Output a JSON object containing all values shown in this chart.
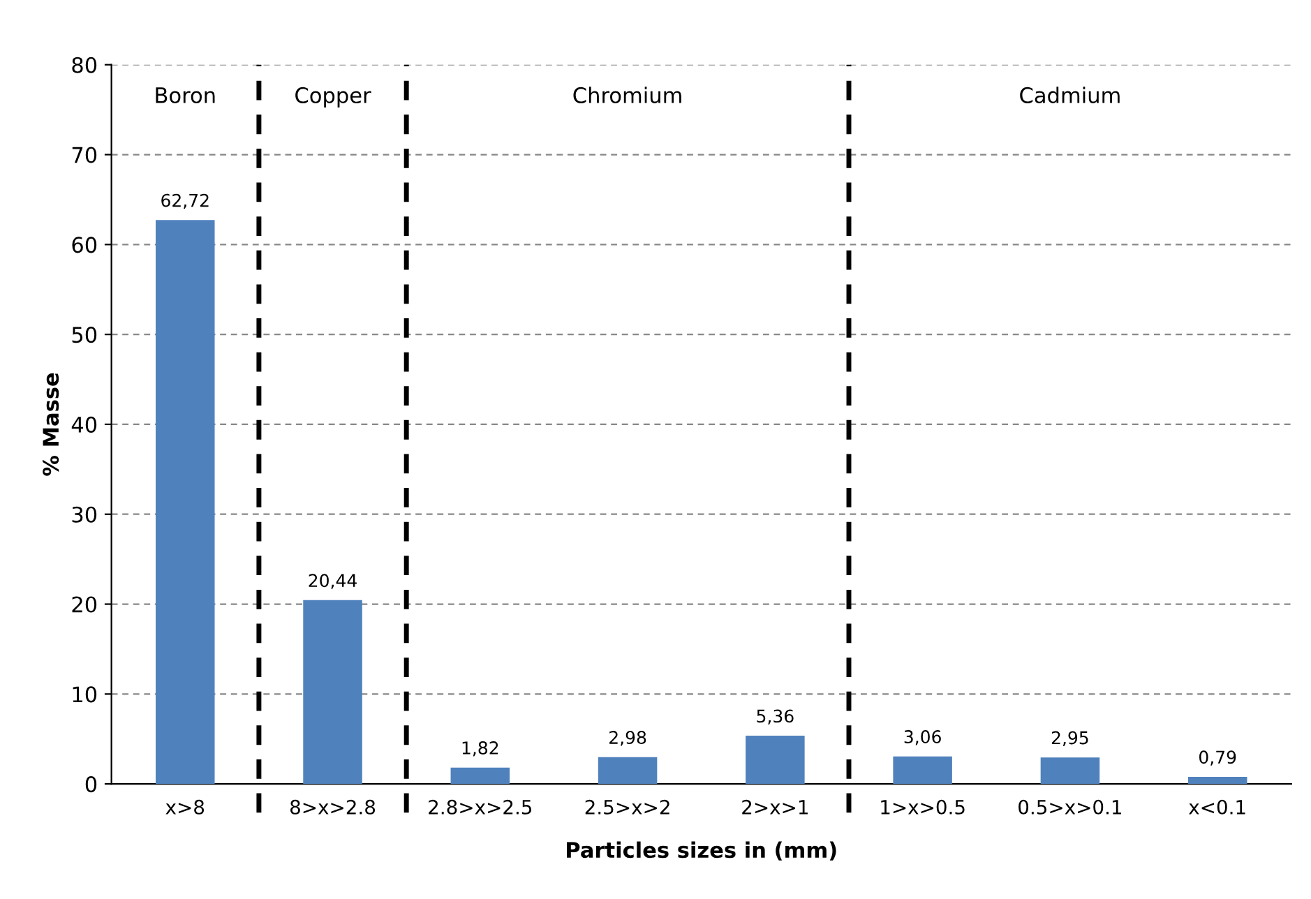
{
  "chart_data": {
    "type": "bar",
    "xlabel": "Particles sizes in (mm)",
    "ylabel": "% Masse",
    "categories": [
      "x>8",
      "8>x>2.8",
      "2.8>x>2.5",
      "2.5>x>2",
      "2>x>1",
      "1>x>0.5",
      "0.5>x>0.1",
      "x<0.1"
    ],
    "values": [
      62.72,
      20.44,
      1.82,
      2.98,
      5.36,
      3.06,
      2.95,
      0.79
    ],
    "value_labels": [
      "62,72",
      "20,44",
      "1,82",
      "2,98",
      "5,36",
      "3,06",
      "2,95",
      "0,79"
    ],
    "color": "#4f81bd",
    "ylim": [
      0,
      80
    ],
    "yticks": [
      0,
      10,
      20,
      30,
      40,
      50,
      60,
      70,
      80
    ],
    "grid": "y",
    "annotations": [
      "Boron",
      "Copper",
      "Chromium",
      "Cadmium"
    ]
  }
}
